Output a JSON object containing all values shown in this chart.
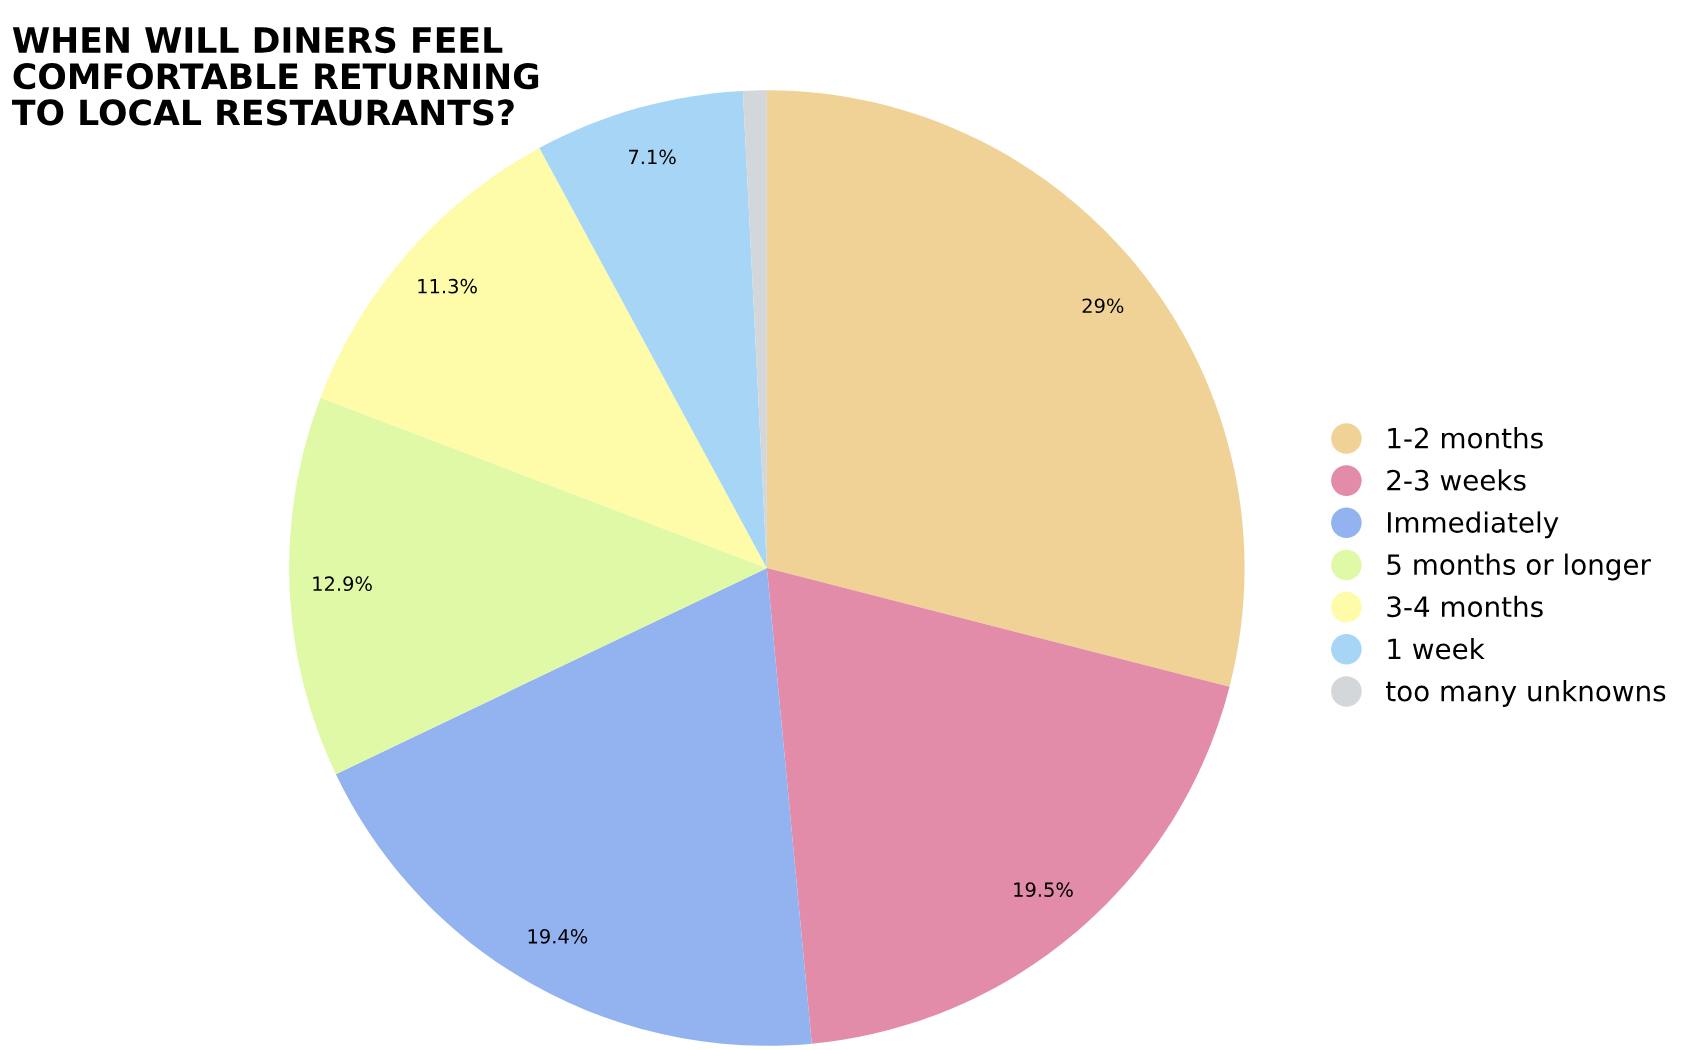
{
  "chart_data": {
    "type": "pie",
    "title": "WHEN WILL DINERS FEEL\nCOMFORTABLE RETURNING\nTO LOCAL RESTAURANTS?",
    "categories": [
      "1-2 months",
      "2-3 weeks",
      "Immediately",
      "5 months or longer",
      "3-4 months",
      "1 week",
      "too many unknowns"
    ],
    "values": [
      29,
      19.5,
      19.4,
      12.9,
      11.3,
      7.1,
      0.8
    ],
    "value_labels": [
      "29%",
      "19.5%",
      "19.4%",
      "12.9%",
      "11.3%",
      "7.1%",
      null
    ],
    "colors": [
      "#f0d296",
      "#e28ca9",
      "#93b2f0",
      "#dff9a7",
      "#fefca8",
      "#a6d5f6",
      "#d3d7da"
    ],
    "legend": "right"
  }
}
